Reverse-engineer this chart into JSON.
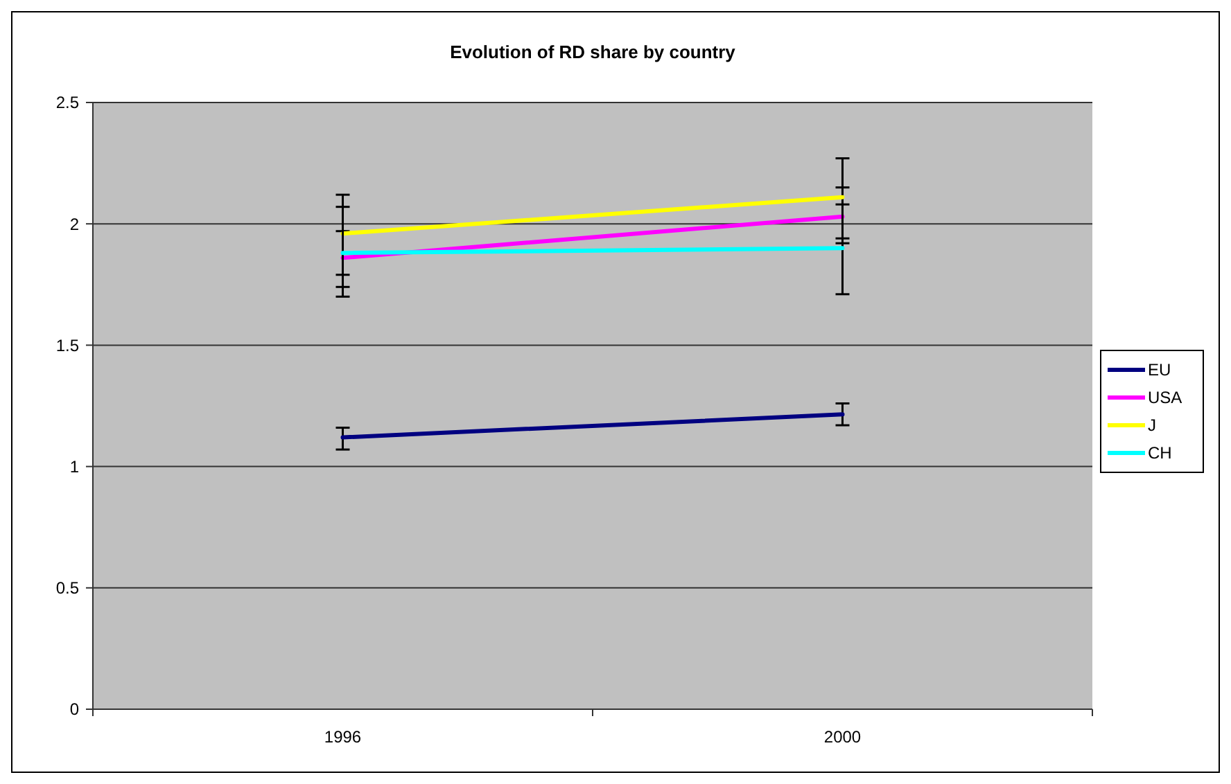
{
  "chart_data": {
    "type": "line",
    "title": "Evolution of  RD share by country",
    "categories": [
      "1996",
      "2000"
    ],
    "series": [
      {
        "name": "EU",
        "color": "#000080",
        "values": [
          1.12,
          1.215
        ],
        "errors": [
          [
            1.07,
            1.16
          ],
          [
            1.17,
            1.26
          ]
        ]
      },
      {
        "name": "USA",
        "color": "#ff00ff",
        "values": [
          1.86,
          2.03
        ],
        "errors": [
          [
            1.74,
            1.97
          ],
          [
            1.92,
            2.15
          ]
        ]
      },
      {
        "name": "J",
        "color": "#ffff00",
        "values": [
          1.96,
          2.11
        ],
        "errors": [
          [
            1.79,
            2.12
          ],
          [
            1.94,
            2.27
          ]
        ]
      },
      {
        "name": "CH",
        "color": "#00ffff",
        "values": [
          1.88,
          1.9
        ],
        "errors": [
          [
            1.7,
            2.07
          ],
          [
            1.71,
            2.08
          ]
        ]
      }
    ],
    "ylim": [
      0,
      2.5
    ],
    "yticks": [
      0,
      0.5,
      1,
      1.5,
      2,
      2.5
    ],
    "grid": "y",
    "legend": "right",
    "marker": "none",
    "line_style": "solid"
  }
}
